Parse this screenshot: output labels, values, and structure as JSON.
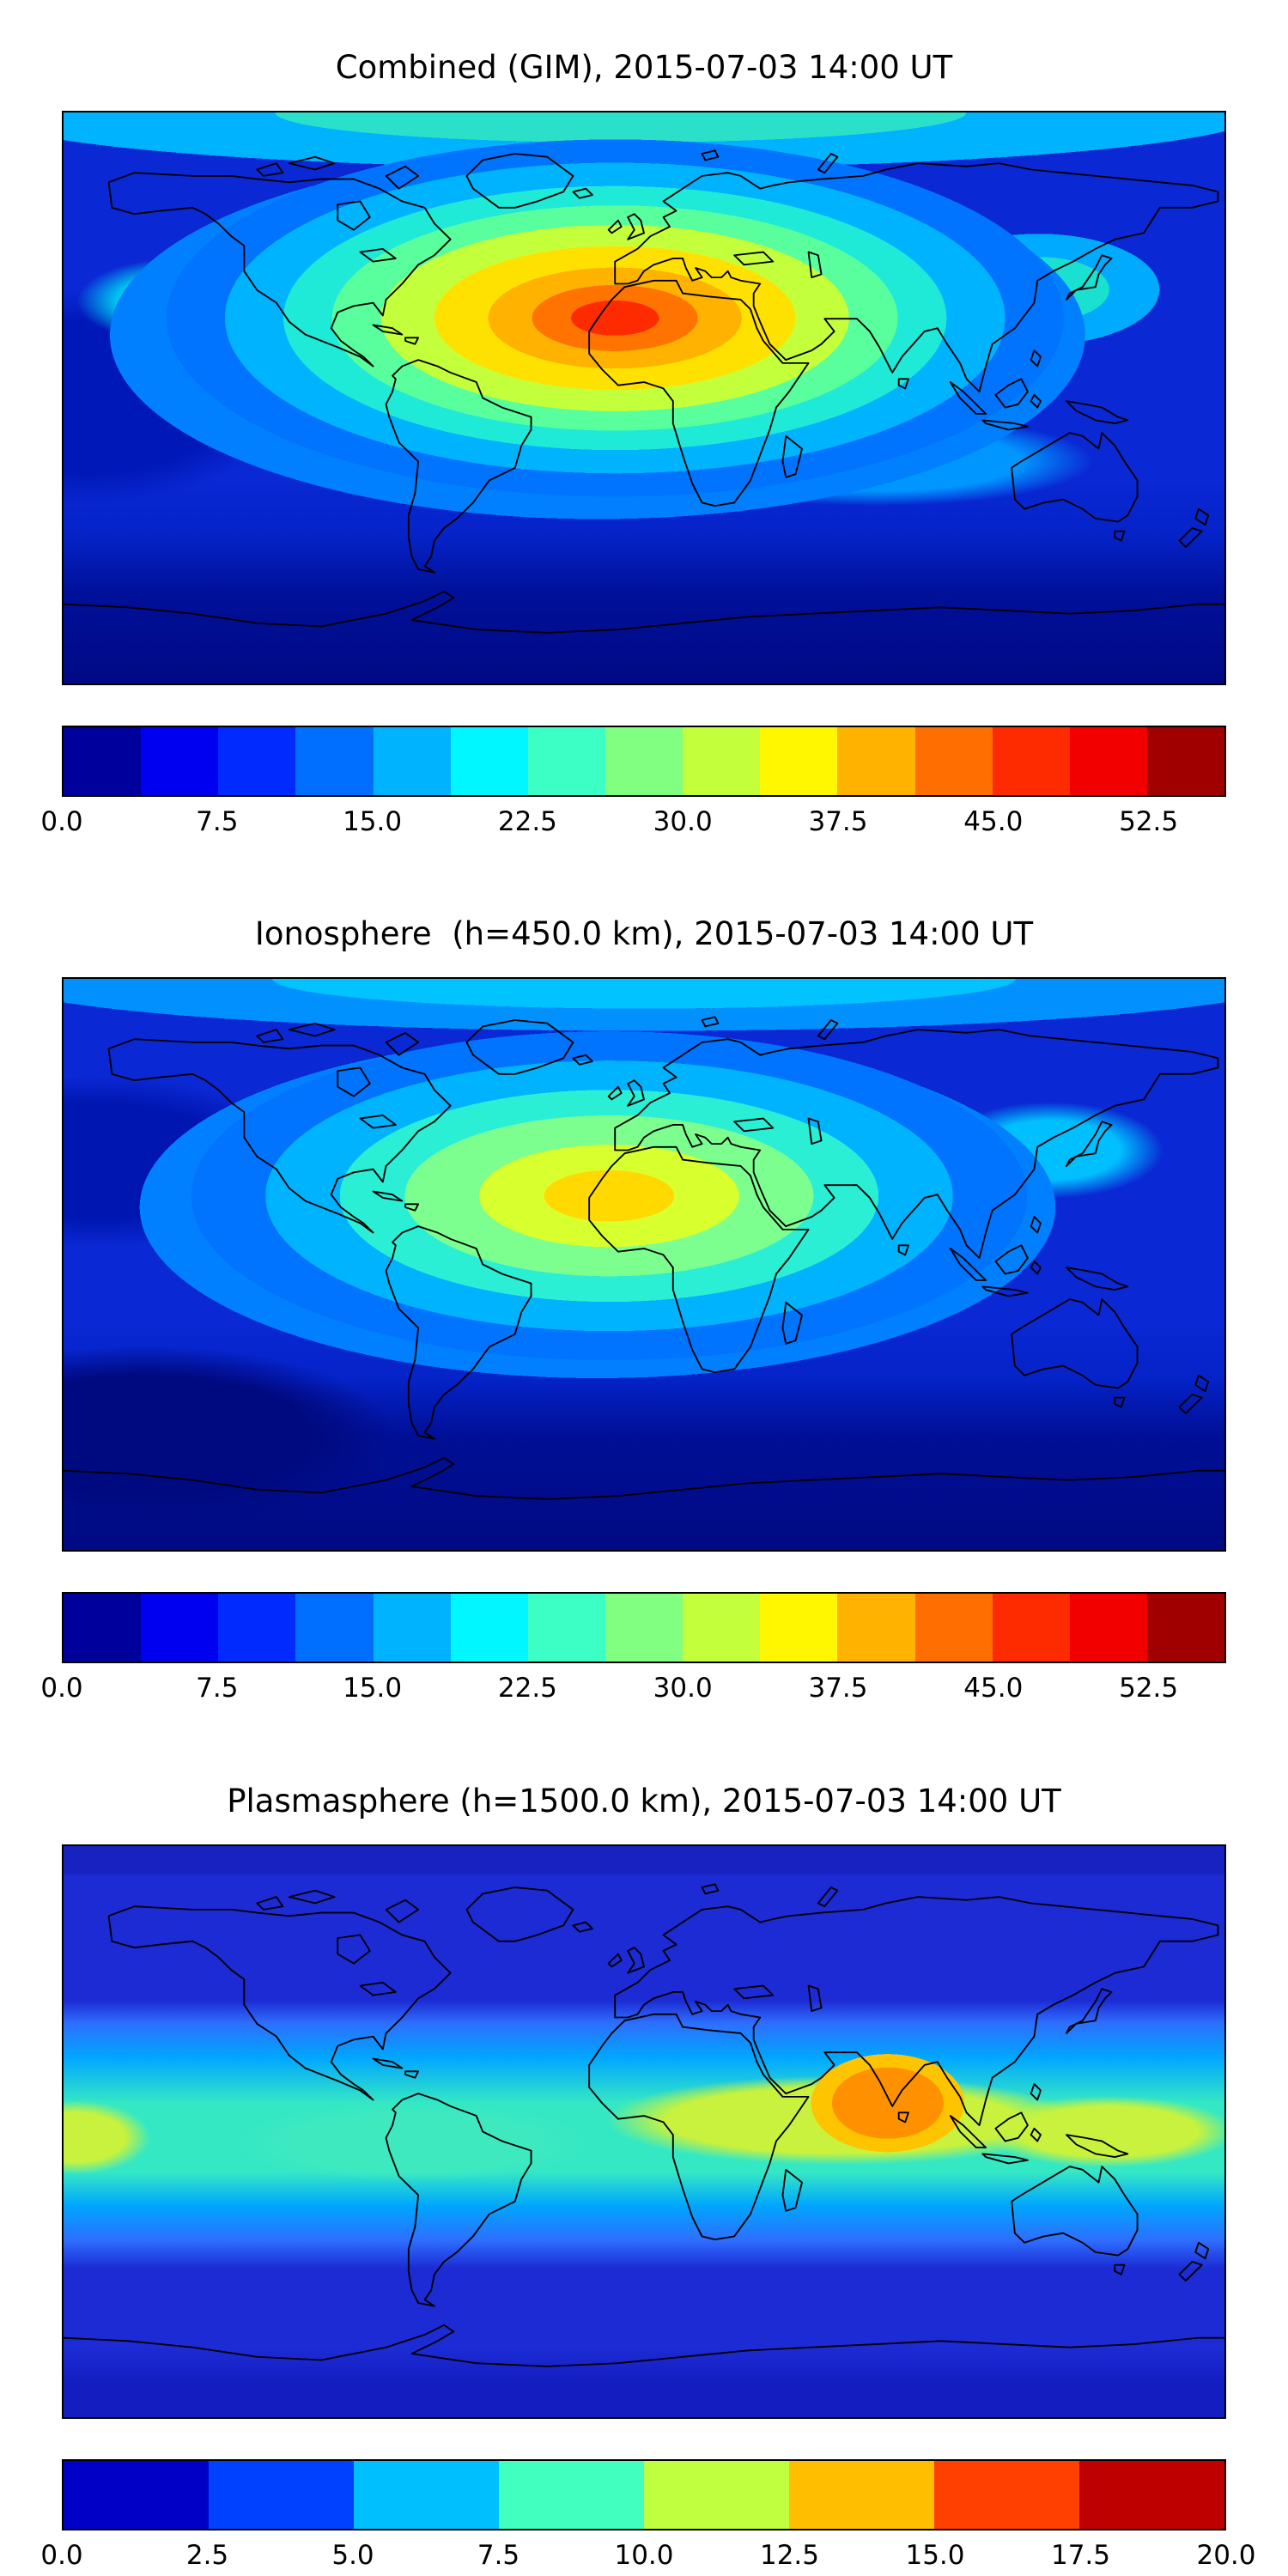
{
  "panels": [
    {
      "title": "Combined (GIM), 2015-07-03 14:00 UT",
      "scale_max": 56.25,
      "ticks": [
        {
          "label": "0.0",
          "value": 0
        },
        {
          "label": "7.5",
          "value": 7.5
        },
        {
          "label": "15.0",
          "value": 15.0
        },
        {
          "label": "22.5",
          "value": 22.5
        },
        {
          "label": "30.0",
          "value": 30.0
        },
        {
          "label": "37.5",
          "value": 37.5
        },
        {
          "label": "45.0",
          "value": 45.0
        },
        {
          "label": "52.5",
          "value": 52.5
        }
      ],
      "colorbar_colors": [
        "#00009c",
        "#0000f0",
        "#002aff",
        "#006eff",
        "#00b3ff",
        "#00f7ff",
        "#3bffc4",
        "#80ff80",
        "#c4ff3b",
        "#fff700",
        "#ffb300",
        "#ff6e00",
        "#ff2b00",
        "#f20000",
        "#a10000"
      ]
    },
    {
      "title": "Ionosphere  (h=450.0 km), 2015-07-03 14:00 UT",
      "scale_max": 56.25,
      "ticks": [
        {
          "label": "0.0",
          "value": 0
        },
        {
          "label": "7.5",
          "value": 7.5
        },
        {
          "label": "15.0",
          "value": 15.0
        },
        {
          "label": "22.5",
          "value": 22.5
        },
        {
          "label": "30.0",
          "value": 30.0
        },
        {
          "label": "37.5",
          "value": 37.5
        },
        {
          "label": "45.0",
          "value": 45.0
        },
        {
          "label": "52.5",
          "value": 52.5
        }
      ],
      "colorbar_colors": [
        "#00009c",
        "#0000f0",
        "#002aff",
        "#006eff",
        "#00b3ff",
        "#00f7ff",
        "#3bffc4",
        "#80ff80",
        "#c4ff3b",
        "#fff700",
        "#ffb300",
        "#ff6e00",
        "#ff2b00",
        "#f20000",
        "#a10000"
      ]
    },
    {
      "title": "Plasmasphere (h=1500.0 km), 2015-07-03 14:00 UT",
      "scale_max": 20,
      "ticks": [
        {
          "label": "0.0",
          "value": 0
        },
        {
          "label": "2.5",
          "value": 2.5
        },
        {
          "label": "5.0",
          "value": 5.0
        },
        {
          "label": "7.5",
          "value": 7.5
        },
        {
          "label": "10.0",
          "value": 10.0
        },
        {
          "label": "12.5",
          "value": 12.5
        },
        {
          "label": "15.0",
          "value": 15.0
        },
        {
          "label": "17.5",
          "value": 17.5
        },
        {
          "label": "20.0",
          "value": 20.0
        }
      ],
      "colorbar_colors": [
        "#0000c7",
        "#0040ff",
        "#00bfff",
        "#40ffbf",
        "#bfff40",
        "#ffbf00",
        "#ff4000",
        "#bf0000"
      ]
    }
  ],
  "chart_data": [
    {
      "type": "heatmap",
      "title": "Combined (GIM), 2015-07-03 14:00 UT",
      "projection": "equirectangular world map with black coastlines",
      "colormap": "jet",
      "n_color_bands": 15,
      "value_range": [
        0,
        56.25
      ],
      "colorbar_ticks": [
        0.0,
        7.5,
        15.0,
        22.5,
        30.0,
        37.5,
        45.0,
        52.5
      ],
      "legend_position": "horizontal colorbar below map",
      "features": [
        {
          "region": "North Africa / Sahara (~20N, 0-20E)",
          "value_est": "peak ~45-49 (orange-red core)"
        },
        {
          "region": "tropical band Caribbean to Arabia (0-35N)",
          "value_est": "~26-37 (yellow-green)"
        },
        {
          "region": "mid-latitude oceans and Arctic",
          "value_est": "~11-22 (cyan / light blue)"
        },
        {
          "region": "southern high latitudes",
          "value_est": "~0-7 (dark navy)"
        }
      ]
    },
    {
      "type": "heatmap",
      "title": "Ionosphere  (h=450.0 km), 2015-07-03 14:00 UT",
      "projection": "equirectangular world map with black coastlines",
      "colormap": "jet",
      "n_color_bands": 15,
      "value_range": [
        0,
        56.25
      ],
      "colorbar_ticks": [
        0.0,
        7.5,
        15.0,
        22.5,
        30.0,
        37.5,
        45.0,
        52.5
      ],
      "legend_position": "horizontal colorbar below map",
      "features": [
        {
          "region": "West/North Africa (~15N, 10W-20E)",
          "value_est": "peak ~30-34 (yellow core)"
        },
        {
          "region": "tropical Atlantic to South Asia",
          "value_est": "~19-28 (green / aquamarine)"
        },
        {
          "region": "northern oceans",
          "value_est": "~11-19 (light blue)"
        },
        {
          "region": "southeast Pacific and southern high latitudes",
          "value_est": "~0-7 (dark navy)"
        }
      ]
    },
    {
      "type": "heatmap",
      "title": "Plasmasphere (h=1500.0 km), 2015-07-03 14:00 UT",
      "projection": "equirectangular world map with black coastlines",
      "colormap": "jet",
      "n_color_bands": 8,
      "value_range": [
        0,
        20
      ],
      "colorbar_ticks": [
        0.0,
        2.5,
        5.0,
        7.5,
        10.0,
        12.5,
        15.0,
        17.5,
        20.0
      ],
      "legend_position": "horizontal colorbar below map",
      "features": [
        {
          "region": "India / South Asia (~10-15N, 70-85E)",
          "value_est": "peak ~15-17.5 (orange blob)"
        },
        {
          "region": "equatorial belt (wavy band, +/-20 lat)",
          "value_est": "~7.5-12.5 (aquamarine to yellow-green)"
        },
        {
          "region": "flanking mid-latitude bands",
          "value_est": "~5-7.5 (light blue)"
        },
        {
          "region": "high latitudes north and south",
          "value_est": "~0-5 (royal / dark blue)"
        }
      ]
    }
  ]
}
